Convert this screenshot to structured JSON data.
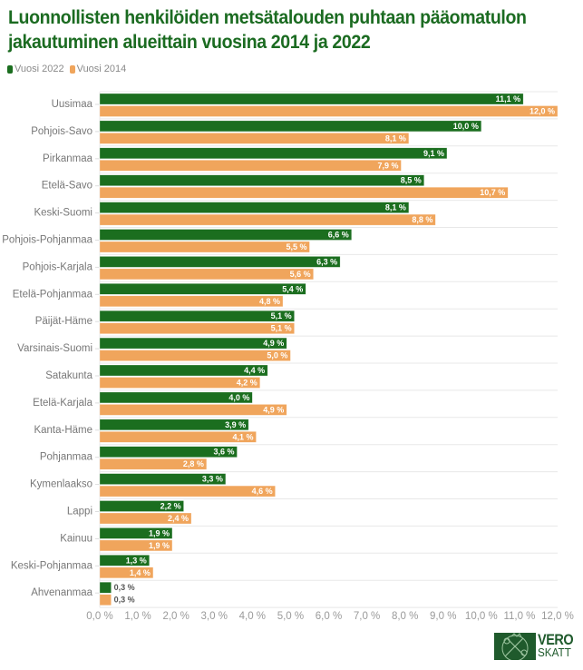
{
  "chart_data": {
    "type": "bar",
    "orientation": "horizontal",
    "title": "Luonnollisten henkilöiden metsätalouden puhtaan pääomatulon jakautuminen alueittain vuosina 2014 ja 2022",
    "title_lines": [
      "Luonnollisten henkilöiden metsätalouden puhtaan pääomatulon",
      "jakautuminen alueittain vuosina 2014 ja 2022"
    ],
    "xlabel": "",
    "ylabel": "",
    "xlim": [
      0,
      12
    ],
    "grid": true,
    "legend_position": "top-left",
    "categories": [
      "Uusimaa",
      "Pohjois-Savo",
      "Pirkanmaa",
      "Etelä-Savo",
      "Keski-Suomi",
      "Pohjois-Pohjanmaa",
      "Pohjois-Karjala",
      "Etelä-Pohjanmaa",
      "Päijät-Häme",
      "Varsinais-Suomi",
      "Satakunta",
      "Etelä-Karjala",
      "Kanta-Häme",
      "Pohjanmaa",
      "Kymenlaakso",
      "Lappi",
      "Kainuu",
      "Keski-Pohjanmaa",
      "Ahvenanmaa"
    ],
    "series": [
      {
        "name": "Vuosi 2022",
        "color": "#1b6e1f",
        "values": [
          11.1,
          10.0,
          9.1,
          8.5,
          8.1,
          6.6,
          6.3,
          5.4,
          5.1,
          4.9,
          4.4,
          4.0,
          3.9,
          3.6,
          3.3,
          2.2,
          1.9,
          1.3,
          0.3
        ],
        "labels": [
          "11,1 %",
          "10,0 %",
          "9,1 %",
          "8,5 %",
          "8,1 %",
          "6,6 %",
          "6,3 %",
          "5,4 %",
          "5,1 %",
          "4,9 %",
          "4,4 %",
          "4,0 %",
          "3,9 %",
          "3,6 %",
          "3,3 %",
          "2,2 %",
          "1,9 %",
          "1,3 %",
          "0,3 %"
        ]
      },
      {
        "name": "Vuosi 2014",
        "color": "#f0a55c",
        "values": [
          12.0,
          8.1,
          7.9,
          10.7,
          8.8,
          5.5,
          5.6,
          4.8,
          5.1,
          5.0,
          4.2,
          4.9,
          4.1,
          2.8,
          4.6,
          2.4,
          1.9,
          1.4,
          0.3
        ],
        "labels": [
          "12,0 %",
          "8,1 %",
          "7,9 %",
          "10,7 %",
          "8,8 %",
          "5,5 %",
          "5,6 %",
          "4,8 %",
          "5,1 %",
          "5,0 %",
          "4,2 %",
          "4,9 %",
          "4,1 %",
          "2,8 %",
          "4,6 %",
          "2,4 %",
          "1,9 %",
          "1,4 %",
          "0,3 %"
        ]
      }
    ],
    "x_ticks": [
      0,
      1,
      2,
      3,
      4,
      5,
      6,
      7,
      8,
      9,
      10,
      11,
      12
    ],
    "x_tick_labels": [
      "0,0 %",
      "1,0 %",
      "2,0 %",
      "3,0 %",
      "4,0 %",
      "5,0 %",
      "6,0 %",
      "7,0 %",
      "8,0 %",
      "9,0 %",
      "10,0 %",
      "11,0 %",
      "12,0 %"
    ]
  },
  "legend": {
    "items": [
      {
        "label": "Vuosi 2022",
        "color": "#1b6e1f"
      },
      {
        "label": "Vuosi 2014",
        "color": "#f0a55c"
      }
    ]
  },
  "logo": {
    "line1": "VERO",
    "line2": "SKATT"
  },
  "colors": {
    "title": "#1b6b21",
    "grid": "#e8e8e8"
  }
}
